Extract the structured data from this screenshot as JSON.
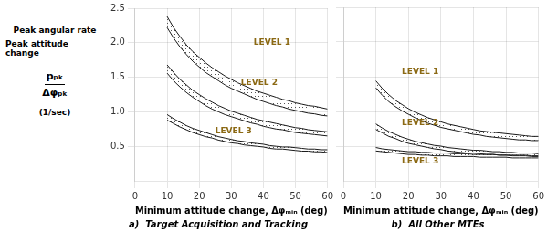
{
  "chart_data": [
    {
      "type": "band",
      "title": "a)  Target Acquisition and Tracking",
      "xlabel": "Minimum attitude change, Δφₘᵢₙ (deg)",
      "ylabel": [
        "Peak angular rate",
        "Peak attitude change",
        "pₚₖ",
        "Δφₚₖ",
        "(1/sec)"
      ],
      "x": [
        10,
        12,
        14,
        16,
        18,
        20,
        22,
        24,
        26,
        28,
        30,
        32,
        34,
        36,
        38,
        40,
        42,
        44,
        46,
        48,
        50,
        52,
        54,
        56,
        58,
        60
      ],
      "series": [
        {
          "color": "#1a1a1a",
          "upper": [
            2.38,
            2.22,
            2.09,
            1.97,
            1.87,
            1.79,
            1.71,
            1.64,
            1.58,
            1.52,
            1.47,
            1.42,
            1.38,
            1.34,
            1.3,
            1.27,
            1.24,
            1.21,
            1.18,
            1.16,
            1.13,
            1.11,
            1.09,
            1.08,
            1.06,
            1.04
          ],
          "lower": [
            2.22,
            2.07,
            1.94,
            1.83,
            1.73,
            1.65,
            1.57,
            1.51,
            1.45,
            1.39,
            1.34,
            1.3,
            1.26,
            1.22,
            1.18,
            1.15,
            1.12,
            1.09,
            1.07,
            1.04,
            1.02,
            1.0,
            0.98,
            0.97,
            0.95,
            0.94
          ]
        },
        {
          "color": "#1a1a1a",
          "upper": [
            1.68,
            1.57,
            1.47,
            1.39,
            1.31,
            1.25,
            1.19,
            1.14,
            1.09,
            1.05,
            1.01,
            0.98,
            0.95,
            0.92,
            0.89,
            0.87,
            0.85,
            0.83,
            0.81,
            0.79,
            0.77,
            0.76,
            0.74,
            0.73,
            0.72,
            0.71
          ],
          "lower": [
            1.56,
            1.45,
            1.36,
            1.28,
            1.21,
            1.15,
            1.09,
            1.04,
            1.0,
            0.96,
            0.93,
            0.9,
            0.87,
            0.84,
            0.82,
            0.79,
            0.77,
            0.75,
            0.74,
            0.72,
            0.7,
            0.69,
            0.68,
            0.67,
            0.66,
            0.65
          ]
        },
        {
          "color": "#1a1a1a",
          "upper": [
            0.96,
            0.9,
            0.85,
            0.8,
            0.76,
            0.73,
            0.7,
            0.67,
            0.64,
            0.62,
            0.6,
            0.58,
            0.57,
            0.55,
            0.54,
            0.53,
            0.51,
            0.5,
            0.49,
            0.49,
            0.48,
            0.47,
            0.46,
            0.46,
            0.45,
            0.45
          ],
          "lower": [
            0.88,
            0.83,
            0.78,
            0.74,
            0.7,
            0.67,
            0.64,
            0.62,
            0.59,
            0.57,
            0.55,
            0.54,
            0.52,
            0.51,
            0.5,
            0.49,
            0.47,
            0.46,
            0.46,
            0.45,
            0.44,
            0.43,
            0.43,
            0.42,
            0.42,
            0.41
          ]
        }
      ],
      "annotations": [
        {
          "text": "LEVEL 1",
          "x": 37,
          "y": 2.0,
          "color": "#8B6914"
        },
        {
          "text": "LEVEL 2",
          "x": 33,
          "y": 1.42,
          "color": "#8B6914"
        },
        {
          "text": "LEVEL 3",
          "x": 25,
          "y": 0.72,
          "color": "#8B6914"
        }
      ],
      "xlim": [
        0,
        60
      ],
      "ylim": [
        0,
        2.5
      ],
      "xticks": [
        0,
        10,
        20,
        30,
        40,
        50,
        60
      ],
      "yticks": [
        0.5,
        {
          "value": 1.0,
          "label": "1.0"
        },
        1.5,
        {
          "value": 2.0,
          "label": "2.0"
        },
        2.5
      ],
      "grid": true
    },
    {
      "type": "band",
      "title": "b)  All Other MTEs",
      "xlabel": "Minimum attitude change, Δφₘᵢₙ (deg)",
      "x": [
        10,
        12,
        14,
        16,
        18,
        20,
        22,
        24,
        26,
        28,
        30,
        32,
        34,
        36,
        38,
        40,
        42,
        44,
        46,
        48,
        50,
        52,
        54,
        56,
        58,
        60
      ],
      "series": [
        {
          "color": "#1a1a1a",
          "upper": [
            1.44,
            1.33,
            1.24,
            1.16,
            1.1,
            1.04,
            0.99,
            0.95,
            0.91,
            0.88,
            0.85,
            0.82,
            0.8,
            0.78,
            0.76,
            0.74,
            0.72,
            0.71,
            0.7,
            0.69,
            0.68,
            0.67,
            0.66,
            0.65,
            0.64,
            0.64
          ],
          "lower": [
            1.34,
            1.23,
            1.14,
            1.07,
            1.01,
            0.96,
            0.91,
            0.87,
            0.83,
            0.8,
            0.77,
            0.75,
            0.73,
            0.71,
            0.69,
            0.67,
            0.66,
            0.64,
            0.63,
            0.62,
            0.61,
            0.6,
            0.59,
            0.59,
            0.58,
            0.58
          ]
        },
        {
          "color": "#1a1a1a",
          "upper": [
            0.82,
            0.76,
            0.71,
            0.67,
            0.63,
            0.6,
            0.57,
            0.55,
            0.53,
            0.51,
            0.5,
            0.48,
            0.47,
            0.46,
            0.45,
            0.44,
            0.44,
            0.43,
            0.42,
            0.42,
            0.41,
            0.41,
            0.4,
            0.4,
            0.4,
            0.39
          ],
          "lower": [
            0.74,
            0.69,
            0.64,
            0.61,
            0.57,
            0.54,
            0.52,
            0.5,
            0.48,
            0.46,
            0.45,
            0.43,
            0.42,
            0.41,
            0.4,
            0.4,
            0.39,
            0.38,
            0.38,
            0.37,
            0.37,
            0.36,
            0.36,
            0.36,
            0.35,
            0.35
          ]
        },
        {
          "color": "#1a1a1a",
          "upper": [
            0.48,
            0.46,
            0.45,
            0.44,
            0.43,
            0.42,
            0.42,
            0.41,
            0.41,
            0.4,
            0.4,
            0.4,
            0.39,
            0.39,
            0.39,
            0.38,
            0.38,
            0.38,
            0.38,
            0.37,
            0.37,
            0.37,
            0.37,
            0.37,
            0.36,
            0.36
          ],
          "lower": [
            0.43,
            0.42,
            0.41,
            0.4,
            0.39,
            0.38,
            0.38,
            0.37,
            0.37,
            0.36,
            0.36,
            0.36,
            0.35,
            0.35,
            0.35,
            0.35,
            0.34,
            0.34,
            0.34,
            0.34,
            0.34,
            0.33,
            0.33,
            0.33,
            0.33,
            0.33
          ]
        }
      ],
      "annotations": [
        {
          "text": "LEVEL 1",
          "x": 18,
          "y": 1.57,
          "color": "#8B6914"
        },
        {
          "text": "LEVEL 2",
          "x": 18,
          "y": 0.84,
          "color": "#8B6914"
        },
        {
          "text": "LEVEL 3",
          "x": 18,
          "y": 0.28,
          "color": "#8B6914"
        }
      ],
      "xlim": [
        0,
        60
      ],
      "ylim": [
        0,
        2.5
      ],
      "xticks": [
        0,
        10,
        20,
        30,
        40,
        50,
        60
      ],
      "yticks": [
        0.5,
        {
          "value": 1.0,
          "label": "1.0"
        },
        1.5,
        {
          "value": 2.0,
          "label": "2.0"
        },
        2.5
      ],
      "tick_labels": "x",
      "grid": true
    }
  ]
}
